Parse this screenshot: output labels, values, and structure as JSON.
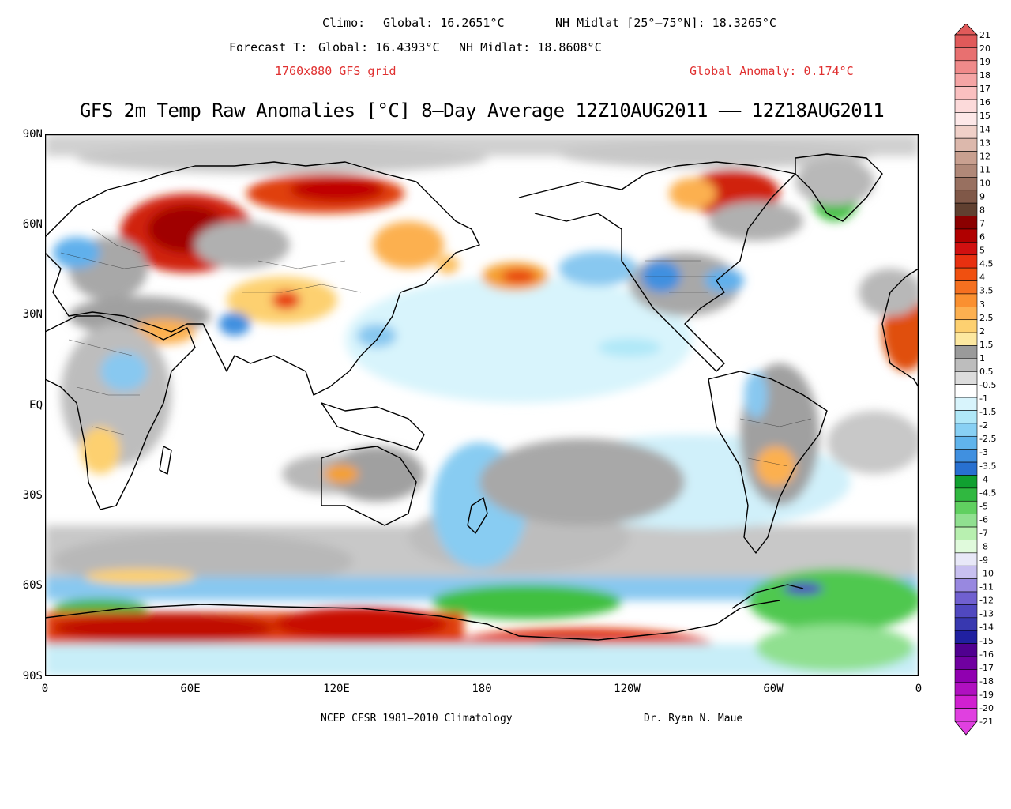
{
  "header": {
    "climo_label": "Climo:",
    "climo_global": "Global: 16.2651°C",
    "climo_nh": "NH Midlat [25°–75°N]: 18.3265°C",
    "forecast_label": "Forecast T:",
    "forecast_global": "Global: 16.4393°C",
    "forecast_nh": "NH Midlat: 18.8608°C",
    "grid": "1760x880 GFS grid",
    "anomaly": "Global Anomaly: 0.174°C",
    "title": "GFS 2m Temp Raw Anomalies [°C] 8–Day Average 12Z10AUG2011 –– 12Z18AUG2011"
  },
  "lat_labels": [
    "90N",
    "60N",
    "30N",
    "EQ",
    "30S",
    "60S",
    "90S"
  ],
  "lon_labels": [
    "0",
    "60E",
    "120E",
    "180",
    "120W",
    "60W",
    "0"
  ],
  "footer": {
    "climatology": "NCEP CFSR 1981–2010 Climatology",
    "author": "Dr. Ryan N. Maue"
  },
  "colorbar": {
    "levels": [
      "21",
      "20",
      "19",
      "18",
      "17",
      "16",
      "15",
      "14",
      "13",
      "12",
      "11",
      "10",
      "9",
      "8",
      "7",
      "6",
      "5",
      "4.5",
      "4",
      "3.5",
      "3",
      "2.5",
      "2",
      "1.5",
      "1",
      "0.5",
      "-0.5",
      "-1",
      "-1.5",
      "-2",
      "-2.5",
      "-3",
      "-3.5",
      "-4",
      "-4.5",
      "-5",
      "-6",
      "-7",
      "-8",
      "-9",
      "-10",
      "-11",
      "-12",
      "-13",
      "-14",
      "-15",
      "-16",
      "-17",
      "-18",
      "-19",
      "-20",
      "-21"
    ],
    "colors": [
      "#e05a5a",
      "#e87070",
      "#f08a8a",
      "#f5a5a5",
      "#fac0c0",
      "#fcdada",
      "#fde8e8",
      "#f0d0c8",
      "#dcb8ac",
      "#c9a090",
      "#b08878",
      "#987060",
      "#805848",
      "#604030",
      "#8b0000",
      "#b00000",
      "#d01010",
      "#e83010",
      "#f05010",
      "#f57020",
      "#fa9030",
      "#fcb050",
      "#fdd070",
      "#fde8a0",
      "#9a9a9a",
      "#bdbdbd",
      "#dcdcdc",
      "#ffffff",
      "#d8f4fc",
      "#b0e8f8",
      "#88d0f4",
      "#60b4ec",
      "#4090e0",
      "#2870d0",
      "#10a030",
      "#30b840",
      "#60d060",
      "#90e090",
      "#b8f0b0",
      "#e0fadc",
      "#e8e8f8",
      "#c8c0f0",
      "#9888e0",
      "#7060d0",
      "#5048c0",
      "#3838b0",
      "#2020a0",
      "#500090",
      "#7000a0",
      "#9000b0",
      "#b010c0",
      "#d020d0",
      "#e040e0"
    ]
  }
}
